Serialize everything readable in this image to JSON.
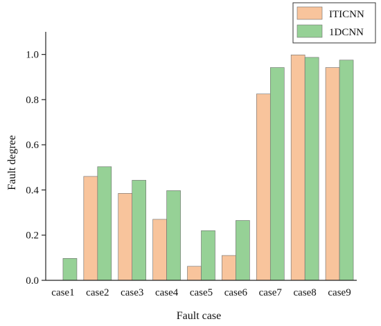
{
  "chart_data": {
    "type": "bar",
    "title": "",
    "xlabel": "Fault case",
    "ylabel": "Fault degree",
    "categories": [
      "case1",
      "case2",
      "case3",
      "case4",
      "case5",
      "case6",
      "case7",
      "case8",
      "case9"
    ],
    "series": [
      {
        "name": "ITICNN",
        "color": "#F8C49C",
        "values": [
          0.0,
          0.46,
          0.385,
          0.27,
          0.062,
          0.11,
          0.825,
          0.998,
          0.942
        ]
      },
      {
        "name": "1DCNN",
        "color": "#96D196",
        "values": [
          0.097,
          0.503,
          0.443,
          0.397,
          0.22,
          0.265,
          0.942,
          0.987,
          0.975
        ]
      }
    ],
    "ylim": [
      0,
      1.1
    ],
    "yticks": [
      "0.0",
      "0.2",
      "0.4",
      "0.6",
      "0.8",
      "1.0"
    ],
    "grid": false,
    "legend_position": "top-right",
    "edge_color": "#6b6b6b"
  }
}
